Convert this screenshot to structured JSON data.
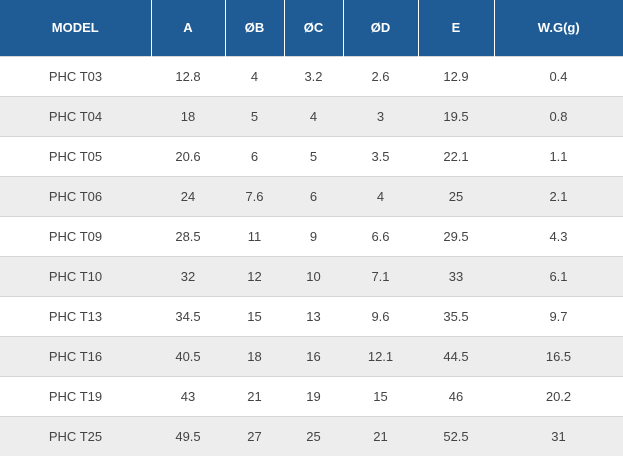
{
  "table": {
    "headers": [
      "MODEL",
      "A",
      "ØB",
      "ØC",
      "ØD",
      "E",
      "W.G(g)"
    ],
    "rows": [
      [
        "PHC T03",
        "12.8",
        "4",
        "3.2",
        "2.6",
        "12.9",
        "0.4"
      ],
      [
        "PHC T04",
        "18",
        "5",
        "4",
        "3",
        "19.5",
        "0.8"
      ],
      [
        "PHC T05",
        "20.6",
        "6",
        "5",
        "3.5",
        "22.1",
        "1.1"
      ],
      [
        "PHC T06",
        "24",
        "7.6",
        "6",
        "4",
        "25",
        "2.1"
      ],
      [
        "PHC T09",
        "28.5",
        "11",
        "9",
        "6.6",
        "29.5",
        "4.3"
      ],
      [
        "PHC T10",
        "32",
        "12",
        "10",
        "7.1",
        "33",
        "6.1"
      ],
      [
        "PHC T13",
        "34.5",
        "15",
        "13",
        "9.6",
        "35.5",
        "9.7"
      ],
      [
        "PHC T16",
        "40.5",
        "18",
        "16",
        "12.1",
        "44.5",
        "16.5"
      ],
      [
        "PHC T19",
        "43",
        "21",
        "19",
        "15",
        "46",
        "20.2"
      ],
      [
        "PHC T25",
        "49.5",
        "27",
        "25",
        "21",
        "52.5",
        "31"
      ]
    ]
  },
  "colors": {
    "header_bg": "#1f5c96",
    "header_text": "#ffffff",
    "row_alt_bg": "#ededed",
    "body_text": "#444444"
  }
}
